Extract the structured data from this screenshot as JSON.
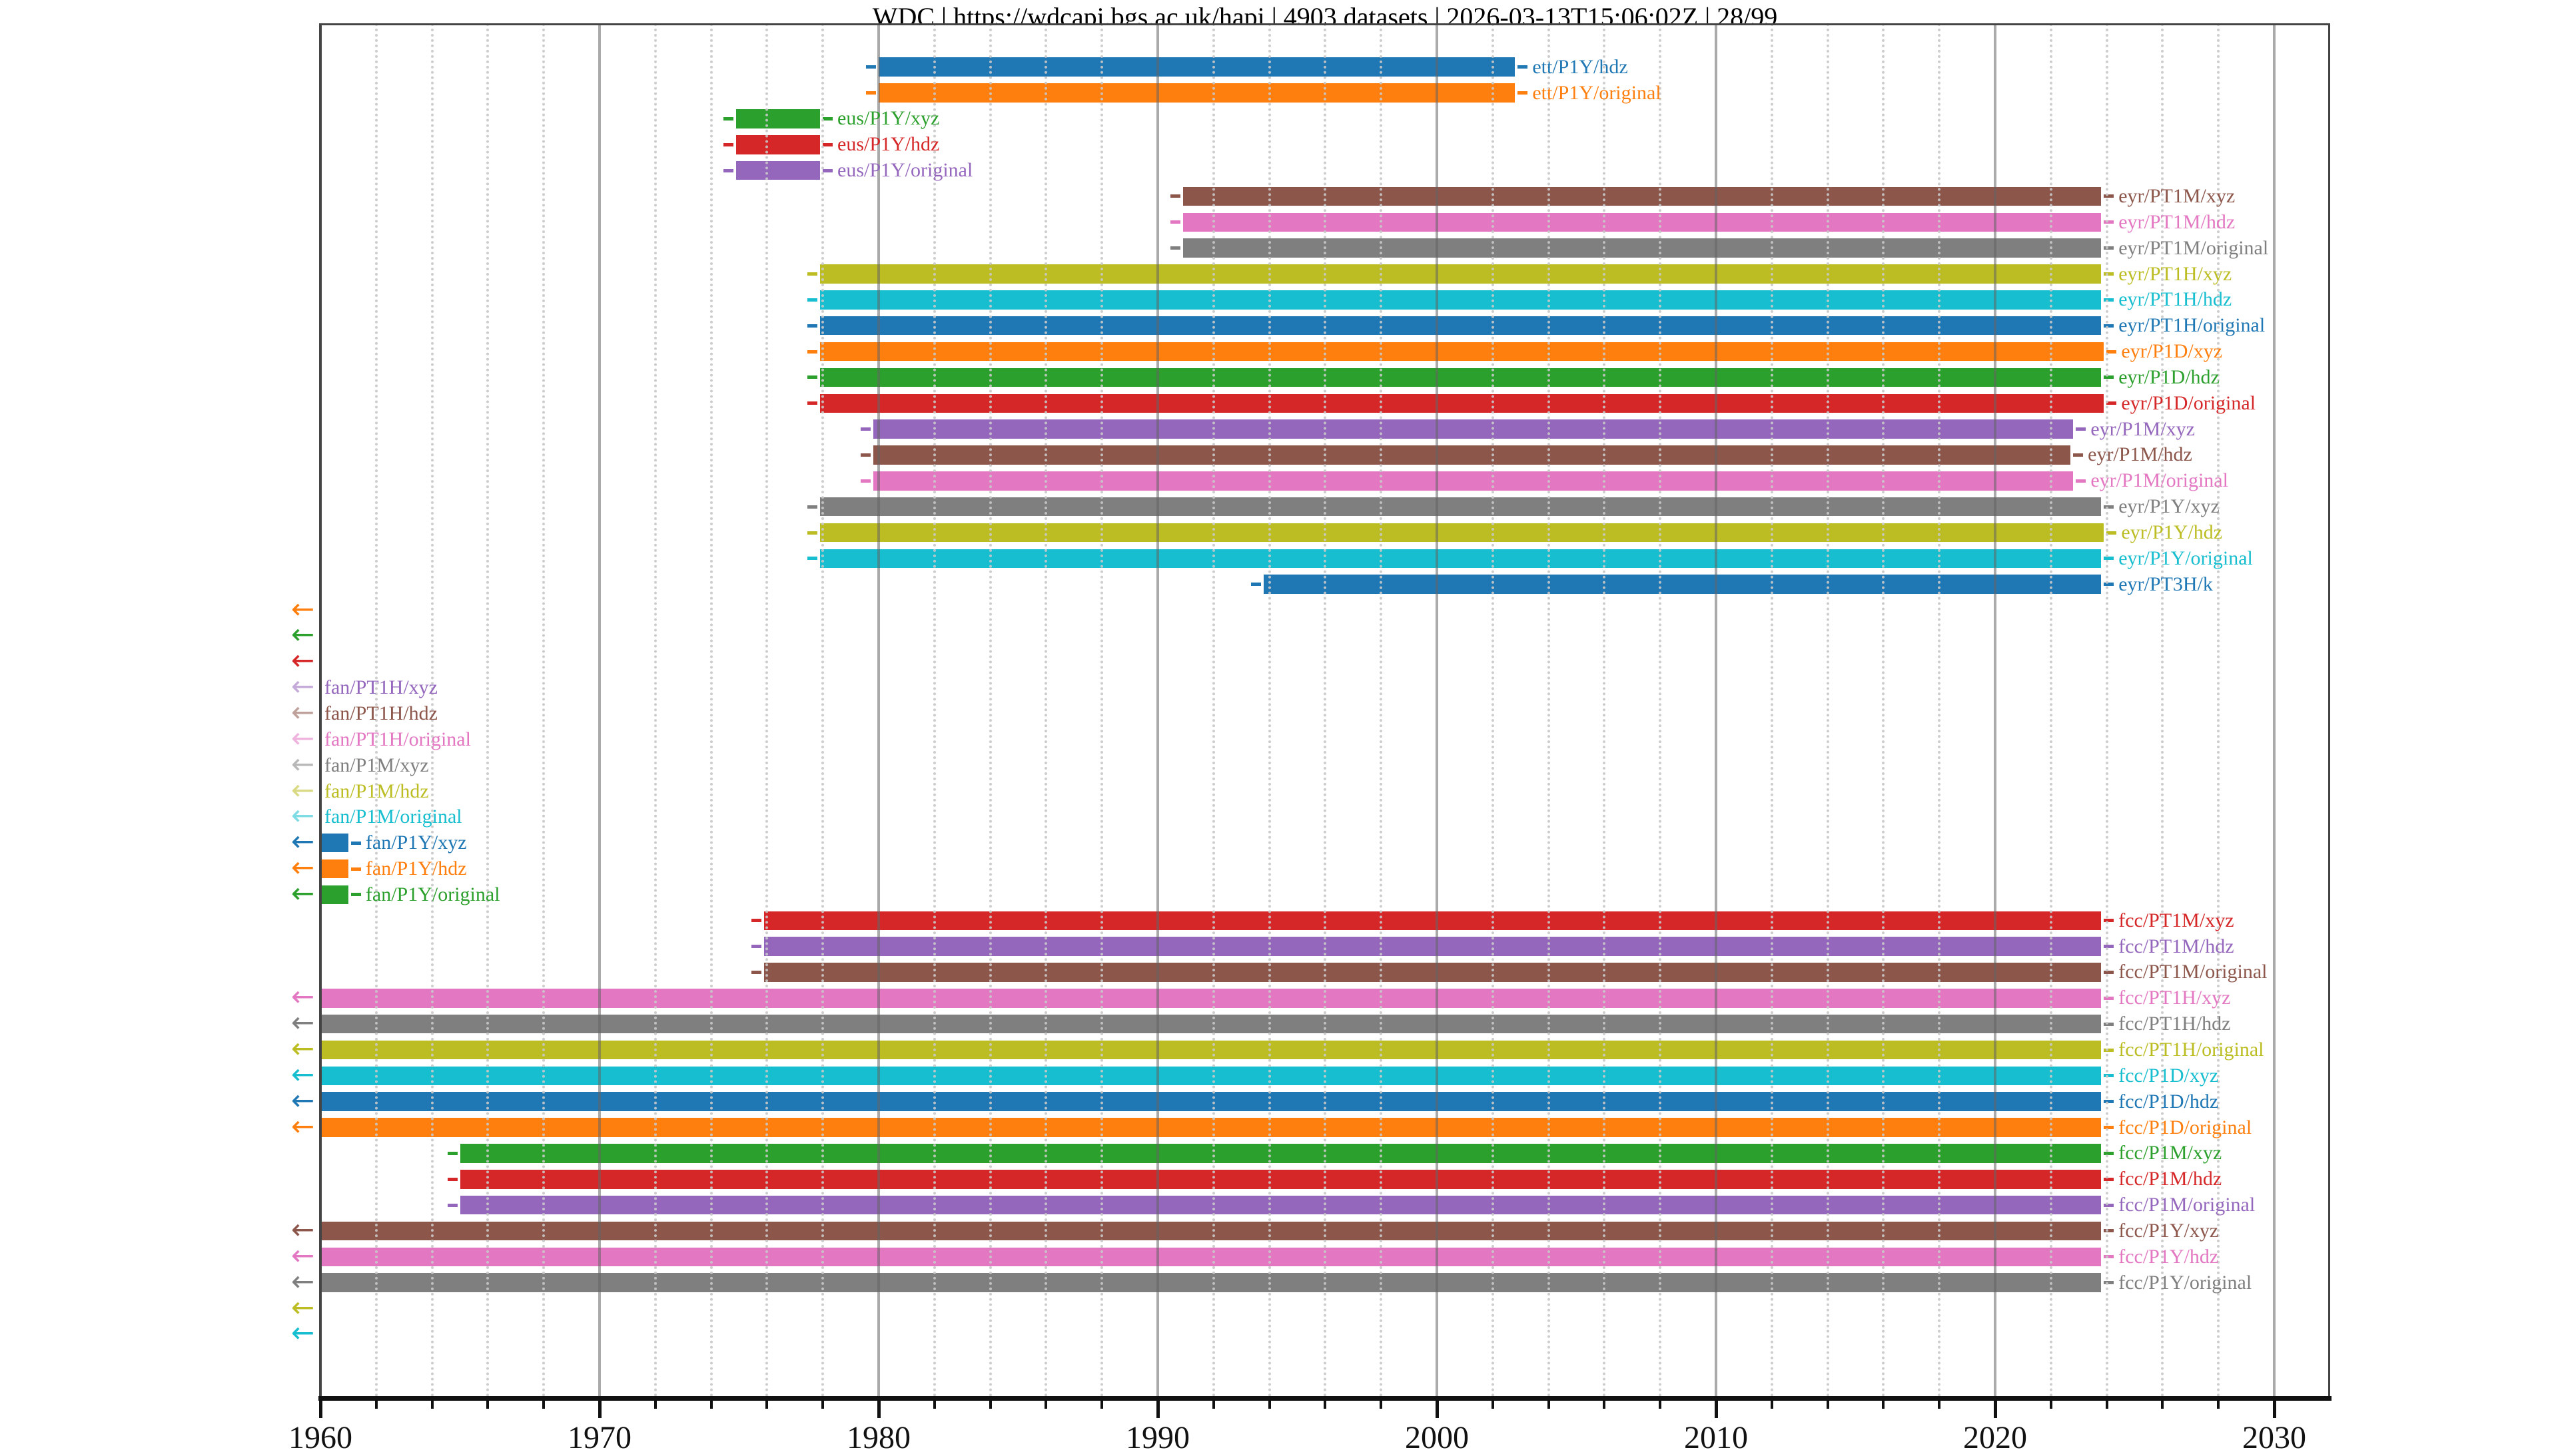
{
  "title": {
    "text": "WDC | https://wdcapi.bgs.ac.uk/hapi | 4903 datasets | 2026-03-13T15:06:02Z | 28/99",
    "source": "WDC",
    "url": "https://wdcapi.bgs.ac.uk/hapi",
    "dataset_count": "4903 datasets",
    "timestamp": "2026-03-13T15:06:02Z",
    "page": "28/99"
  },
  "palette": {
    "blue": "#1f77b4",
    "orange": "#ff7f0e",
    "green": "#2ca02c",
    "red": "#d62728",
    "purple": "#9467bd",
    "brown": "#8c564b",
    "pink": "#e377c2",
    "gray": "#7f7f7f",
    "olive": "#bcbd22",
    "cyan": "#17becf"
  },
  "chart_data": {
    "type": "bar",
    "subtype": "horizontal-availability-timeline",
    "title": "WDC | https://wdcapi.bgs.ac.uk/hapi | 4903 datasets | 2026-03-13T15:06:02Z | 28/99",
    "xlabel": "",
    "ylabel": "",
    "xlim": [
      1960,
      2032
    ],
    "x_major_ticks": [
      1960,
      1970,
      1980,
      1990,
      2000,
      2010,
      2020,
      2030
    ],
    "x_minor_step": 2,
    "grid": "major-solid-minor-dotted",
    "legend_position": "inline-row-labels",
    "note_arrow_meaning": "left arrow = data extends before 1960",
    "rows": [
      {
        "label": "ett/P1Y/hdz",
        "color": "blue",
        "start": 1980.0,
        "end": 2002.8,
        "arrow": false,
        "label_pos": "right"
      },
      {
        "label": "ett/P1Y/original",
        "color": "orange",
        "start": 1980.0,
        "end": 2002.8,
        "arrow": false,
        "label_pos": "right"
      },
      {
        "label": "eus/P1Y/xyz",
        "color": "green",
        "start": 1974.9,
        "end": 1977.9,
        "arrow": false,
        "label_pos": "right"
      },
      {
        "label": "eus/P1Y/hdz",
        "color": "red",
        "start": 1974.9,
        "end": 1977.9,
        "arrow": false,
        "label_pos": "right"
      },
      {
        "label": "eus/P1Y/original",
        "color": "purple",
        "start": 1974.9,
        "end": 1977.9,
        "arrow": false,
        "label_pos": "right"
      },
      {
        "label": "eyr/PT1M/xyz",
        "color": "brown",
        "start": 1990.9,
        "end": 2023.8,
        "arrow": false,
        "label_pos": "right"
      },
      {
        "label": "eyr/PT1M/hdz",
        "color": "pink",
        "start": 1990.9,
        "end": 2023.8,
        "arrow": false,
        "label_pos": "right"
      },
      {
        "label": "eyr/PT1M/original",
        "color": "gray",
        "start": 1990.9,
        "end": 2023.8,
        "arrow": false,
        "label_pos": "right"
      },
      {
        "label": "eyr/PT1H/xyz",
        "color": "olive",
        "start": 1977.9,
        "end": 2023.8,
        "arrow": false,
        "label_pos": "right"
      },
      {
        "label": "eyr/PT1H/hdz",
        "color": "cyan",
        "start": 1977.9,
        "end": 2023.8,
        "arrow": false,
        "label_pos": "right"
      },
      {
        "label": "eyr/PT1H/original",
        "color": "blue",
        "start": 1977.9,
        "end": 2023.8,
        "arrow": false,
        "label_pos": "right"
      },
      {
        "label": "eyr/P1D/xyz",
        "color": "orange",
        "start": 1977.9,
        "end": 2023.9,
        "arrow": false,
        "label_pos": "right"
      },
      {
        "label": "eyr/P1D/hdz",
        "color": "green",
        "start": 1977.9,
        "end": 2023.8,
        "arrow": false,
        "label_pos": "right"
      },
      {
        "label": "eyr/P1D/original",
        "color": "red",
        "start": 1977.9,
        "end": 2023.9,
        "arrow": false,
        "label_pos": "right"
      },
      {
        "label": "eyr/P1M/xyz",
        "color": "purple",
        "start": 1979.8,
        "end": 2022.8,
        "arrow": false,
        "label_pos": "right"
      },
      {
        "label": "eyr/P1M/hdz",
        "color": "brown",
        "start": 1979.8,
        "end": 2022.7,
        "arrow": false,
        "label_pos": "right"
      },
      {
        "label": "eyr/P1M/original",
        "color": "pink",
        "start": 1979.8,
        "end": 2022.8,
        "arrow": false,
        "label_pos": "right"
      },
      {
        "label": "eyr/P1Y/xyz",
        "color": "gray",
        "start": 1977.9,
        "end": 2023.8,
        "arrow": false,
        "label_pos": "right"
      },
      {
        "label": "eyr/P1Y/hdz",
        "color": "olive",
        "start": 1977.9,
        "end": 2023.9,
        "arrow": false,
        "label_pos": "right"
      },
      {
        "label": "eyr/P1Y/original",
        "color": "cyan",
        "start": 1977.9,
        "end": 2023.8,
        "arrow": false,
        "label_pos": "right"
      },
      {
        "label": "eyr/PT3H/k",
        "color": "blue",
        "start": 1993.8,
        "end": 2023.8,
        "arrow": false,
        "label_pos": "right"
      },
      {
        "label": "",
        "color": "orange",
        "start": null,
        "end": null,
        "arrow": true,
        "label_pos": "none"
      },
      {
        "label": "",
        "color": "green",
        "start": null,
        "end": null,
        "arrow": true,
        "label_pos": "none"
      },
      {
        "label": "",
        "color": "red",
        "start": null,
        "end": null,
        "arrow": true,
        "label_pos": "none"
      },
      {
        "label": "fan/PT1H/xyz",
        "color": "purple",
        "start": null,
        "end": null,
        "arrow": true,
        "label_pos": "axis"
      },
      {
        "label": "fan/PT1H/hdz",
        "color": "brown",
        "start": null,
        "end": null,
        "arrow": true,
        "label_pos": "axis"
      },
      {
        "label": "fan/PT1H/original",
        "color": "pink",
        "start": null,
        "end": null,
        "arrow": true,
        "label_pos": "axis"
      },
      {
        "label": "fan/P1M/xyz",
        "color": "gray",
        "start": null,
        "end": null,
        "arrow": true,
        "label_pos": "axis"
      },
      {
        "label": "fan/P1M/hdz",
        "color": "olive",
        "start": null,
        "end": null,
        "arrow": true,
        "label_pos": "axis"
      },
      {
        "label": "fan/P1M/original",
        "color": "cyan",
        "start": null,
        "end": null,
        "arrow": true,
        "label_pos": "axis"
      },
      {
        "label": "fan/P1Y/xyz",
        "color": "blue",
        "start": 1960.0,
        "end": 1961.0,
        "arrow": true,
        "label_pos": "right"
      },
      {
        "label": "fan/P1Y/hdz",
        "color": "orange",
        "start": 1960.0,
        "end": 1961.0,
        "arrow": true,
        "label_pos": "right"
      },
      {
        "label": "fan/P1Y/original",
        "color": "green",
        "start": 1960.0,
        "end": 1961.0,
        "arrow": true,
        "label_pos": "right"
      },
      {
        "label": "fcc/PT1M/xyz",
        "color": "red",
        "start": 1975.9,
        "end": 2023.8,
        "arrow": false,
        "label_pos": "right"
      },
      {
        "label": "fcc/PT1M/hdz",
        "color": "purple",
        "start": 1975.9,
        "end": 2023.8,
        "arrow": false,
        "label_pos": "right"
      },
      {
        "label": "fcc/PT1M/original",
        "color": "brown",
        "start": 1975.9,
        "end": 2023.8,
        "arrow": false,
        "label_pos": "right"
      },
      {
        "label": "fcc/PT1H/xyz",
        "color": "pink",
        "start": 1960.0,
        "end": 2023.8,
        "arrow": true,
        "label_pos": "right"
      },
      {
        "label": "fcc/PT1H/hdz",
        "color": "gray",
        "start": 1960.0,
        "end": 2023.8,
        "arrow": true,
        "label_pos": "right"
      },
      {
        "label": "fcc/PT1H/original",
        "color": "olive",
        "start": 1960.0,
        "end": 2023.8,
        "arrow": true,
        "label_pos": "right"
      },
      {
        "label": "fcc/P1D/xyz",
        "color": "cyan",
        "start": 1960.0,
        "end": 2023.8,
        "arrow": true,
        "label_pos": "right"
      },
      {
        "label": "fcc/P1D/hdz",
        "color": "blue",
        "start": 1960.0,
        "end": 2023.8,
        "arrow": true,
        "label_pos": "right"
      },
      {
        "label": "fcc/P1D/original",
        "color": "orange",
        "start": 1960.0,
        "end": 2023.8,
        "arrow": true,
        "label_pos": "right"
      },
      {
        "label": "fcc/P1M/xyz",
        "color": "green",
        "start": 1965.0,
        "end": 2023.8,
        "arrow": false,
        "label_pos": "right"
      },
      {
        "label": "fcc/P1M/hdz",
        "color": "red",
        "start": 1965.0,
        "end": 2023.8,
        "arrow": false,
        "label_pos": "right"
      },
      {
        "label": "fcc/P1M/original",
        "color": "purple",
        "start": 1965.0,
        "end": 2023.8,
        "arrow": false,
        "label_pos": "right"
      },
      {
        "label": "fcc/P1Y/xyz",
        "color": "brown",
        "start": 1960.0,
        "end": 2023.8,
        "arrow": true,
        "label_pos": "right"
      },
      {
        "label": "fcc/P1Y/hdz",
        "color": "pink",
        "start": 1960.0,
        "end": 2023.8,
        "arrow": true,
        "label_pos": "right"
      },
      {
        "label": "fcc/P1Y/original",
        "color": "gray",
        "start": 1960.0,
        "end": 2023.8,
        "arrow": true,
        "label_pos": "right"
      },
      {
        "label": "",
        "color": "olive",
        "start": null,
        "end": null,
        "arrow": true,
        "label_pos": "none"
      },
      {
        "label": "",
        "color": "cyan",
        "start": null,
        "end": null,
        "arrow": true,
        "label_pos": "none"
      }
    ]
  }
}
